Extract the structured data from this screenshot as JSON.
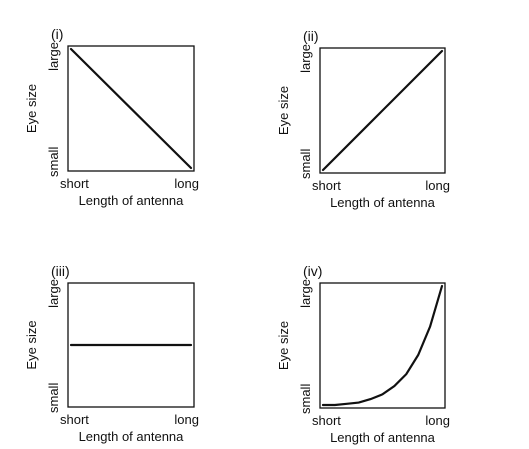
{
  "chart_data": [
    {
      "type": "line",
      "panel_label": "(i)",
      "xlabel": "Length of antenna",
      "ylabel": "Eye size",
      "x_tick_labels": [
        "short",
        "long"
      ],
      "y_tick_labels": [
        "small",
        "large"
      ],
      "xlim": [
        0,
        1
      ],
      "ylim": [
        0,
        1
      ],
      "grid": false,
      "x": [
        0,
        1
      ],
      "y": [
        1,
        0
      ]
    },
    {
      "type": "line",
      "panel_label": "(ii)",
      "xlabel": "Length of antenna",
      "ylabel": "Eye size",
      "x_tick_labels": [
        "short",
        "long"
      ],
      "y_tick_labels": [
        "small",
        "large"
      ],
      "xlim": [
        0,
        1
      ],
      "ylim": [
        0,
        1
      ],
      "grid": false,
      "x": [
        0,
        1
      ],
      "y": [
        0,
        1
      ]
    },
    {
      "type": "line",
      "panel_label": "(iii)",
      "xlabel": "Length of antenna",
      "ylabel": "Eye size",
      "x_tick_labels": [
        "short",
        "long"
      ],
      "y_tick_labels": [
        "small",
        "large"
      ],
      "xlim": [
        0,
        1
      ],
      "ylim": [
        0,
        1
      ],
      "grid": false,
      "x": [
        0,
        1
      ],
      "y": [
        0.5,
        0.5
      ]
    },
    {
      "type": "line",
      "panel_label": "(iv)",
      "xlabel": "Length of antenna",
      "ylabel": "Eye size",
      "x_tick_labels": [
        "short",
        "long"
      ],
      "y_tick_labels": [
        "small",
        "large"
      ],
      "xlim": [
        0,
        1
      ],
      "ylim": [
        0,
        1
      ],
      "grid": false,
      "x": [
        0,
        0.1,
        0.2,
        0.3,
        0.4,
        0.5,
        0.6,
        0.7,
        0.8,
        0.9,
        1.0
      ],
      "y": [
        0.0,
        0.0,
        0.01,
        0.02,
        0.05,
        0.09,
        0.16,
        0.26,
        0.42,
        0.66,
        1.0
      ]
    }
  ]
}
